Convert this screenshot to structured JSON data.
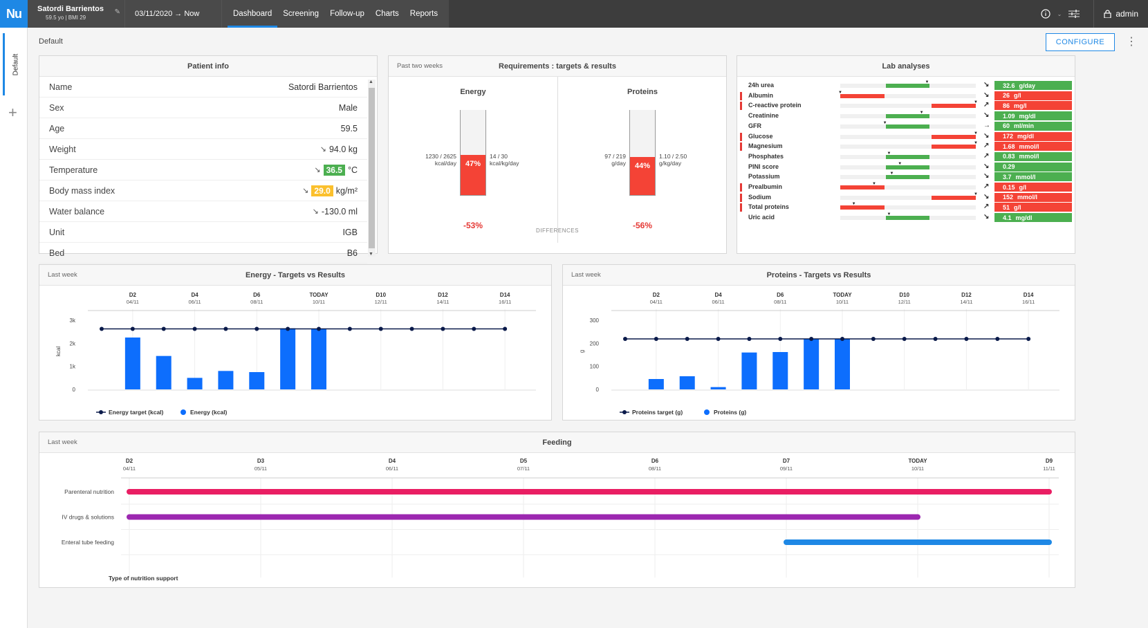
{
  "topbar": {
    "logo": "Nu",
    "patient_name": "Satordi Barrientos",
    "patient_sub": "59.5 yo | BMI 29",
    "date_range": "03/11/2020 → Now",
    "tabs": [
      "Dashboard",
      "Screening",
      "Follow-up",
      "Charts",
      "Reports"
    ],
    "active_tab": "Dashboard",
    "user": "admin"
  },
  "left": {
    "tab_label": "Default",
    "add_label": "+"
  },
  "page": {
    "crumb": "Default",
    "configure_label": "CONFIGURE"
  },
  "patient_info": {
    "title": "Patient info",
    "rows": [
      {
        "label": "Name",
        "value": "Satordi Barrientos"
      },
      {
        "label": "Sex",
        "value": "Male"
      },
      {
        "label": "Age",
        "value": "59.5"
      },
      {
        "label": "Weight",
        "value": "94.0 kg",
        "trend": "↘"
      },
      {
        "label": "Temperature",
        "value": "36.5",
        "unit": "°C",
        "trend": "↘",
        "badge": "green"
      },
      {
        "label": "Body mass index",
        "value": "29.0",
        "unit": "kg/m²",
        "trend": "↘",
        "badge": "yellow"
      },
      {
        "label": "Water balance",
        "value": "-130.0 ml",
        "trend": "↘"
      },
      {
        "label": "Unit",
        "value": "IGB"
      },
      {
        "label": "Bed",
        "value": "B6"
      }
    ]
  },
  "requirements": {
    "sub": "Past two weeks",
    "title": "Requirements : targets & results",
    "differences_label": "DIFFERENCES",
    "energy": {
      "title": "Energy",
      "pct": "47%",
      "pct_value": 47,
      "left_top": "1230 / 2625",
      "left_bot": "kcal/day",
      "right_top": "14 / 30",
      "right_bot": "kcal/kg/day",
      "diff": "-53%"
    },
    "proteins": {
      "title": "Proteins",
      "pct": "44%",
      "pct_value": 44,
      "left_top": "97 / 219",
      "left_bot": "g/day",
      "right_top": "1.10 / 2.50",
      "right_bot": "g/kg/day",
      "diff": "-56%"
    }
  },
  "lab": {
    "title": "Lab analyses",
    "rows": [
      {
        "name": "24h urea",
        "flag": false,
        "trend": "↘",
        "value": "32.6",
        "unit": "g/day",
        "status": "ok",
        "bar": [
          0.33,
          0.66
        ],
        "tick": 0.64
      },
      {
        "name": "Albumin",
        "flag": true,
        "trend": "↘",
        "value": "26",
        "unit": "g/l",
        "status": "bad",
        "bar": [
          0,
          0.33
        ],
        "tick": 0.0
      },
      {
        "name": "C-reactive protein",
        "flag": true,
        "trend": "↗",
        "value": "86",
        "unit": "mg/l",
        "status": "bad",
        "bar": [
          0.67,
          1
        ],
        "tick": 1.0
      },
      {
        "name": "Creatinine",
        "flag": false,
        "trend": "↘",
        "value": "1.09",
        "unit": "mg/dl",
        "status": "ok",
        "bar": [
          0.33,
          0.66
        ],
        "tick": 0.6
      },
      {
        "name": "GFR",
        "flag": false,
        "trend": "→",
        "value": "60",
        "unit": "ml/min",
        "status": "ok",
        "bar": [
          0.33,
          0.66
        ],
        "tick": 0.33
      },
      {
        "name": "Glucose",
        "flag": true,
        "trend": "↘",
        "value": "172",
        "unit": "mg/dl",
        "status": "bad",
        "bar": [
          0.67,
          1
        ],
        "tick": 1.0
      },
      {
        "name": "Magnesium",
        "flag": true,
        "trend": "↗",
        "value": "1.68",
        "unit": "mmol/l",
        "status": "bad",
        "bar": [
          0.67,
          1
        ],
        "tick": 1.0
      },
      {
        "name": "Phosphates",
        "flag": false,
        "trend": "↗",
        "value": "0.83",
        "unit": "mmol/l",
        "status": "ok",
        "bar": [
          0.33,
          0.66
        ],
        "tick": 0.36
      },
      {
        "name": "PINI score",
        "flag": false,
        "trend": "↘",
        "value": "0.29",
        "unit": "",
        "status": "ok",
        "bar": [
          0.33,
          0.66
        ],
        "tick": 0.44
      },
      {
        "name": "Potassium",
        "flag": false,
        "trend": "↘",
        "value": "3.7",
        "unit": "mmol/l",
        "status": "ok",
        "bar": [
          0.33,
          0.66
        ],
        "tick": 0.38
      },
      {
        "name": "Prealbumin",
        "flag": true,
        "trend": "↗",
        "value": "0.15",
        "unit": "g/l",
        "status": "bad",
        "bar": [
          0,
          0.33
        ],
        "tick": 0.25
      },
      {
        "name": "Sodium",
        "flag": true,
        "trend": "↘",
        "value": "152",
        "unit": "mmol/l",
        "status": "bad",
        "bar": [
          0.67,
          1
        ],
        "tick": 1.0
      },
      {
        "name": "Total proteins",
        "flag": true,
        "trend": "↗",
        "value": "51",
        "unit": "g/l",
        "status": "bad",
        "bar": [
          0,
          0.33
        ],
        "tick": 0.1
      },
      {
        "name": "Uric acid",
        "flag": false,
        "trend": "↘",
        "value": "4.1",
        "unit": "mg/dl",
        "status": "ok",
        "bar": [
          0.33,
          0.66
        ],
        "tick": 0.36
      }
    ]
  },
  "energy_chart": {
    "sub": "Last week",
    "title": "Energy - Targets vs Results",
    "ylabel": "kcal",
    "ticks": [
      {
        "d": "D2",
        "x": 1,
        "date": "04/11"
      },
      {
        "d": "D4",
        "x": 3,
        "date": "06/11"
      },
      {
        "d": "D6",
        "x": 5,
        "date": "08/11"
      },
      {
        "d": "TODAY",
        "x": 7,
        "date": "10/11"
      },
      {
        "d": "D10",
        "x": 9,
        "date": "12/11"
      },
      {
        "d": "D12",
        "x": 11,
        "date": "14/11"
      },
      {
        "d": "D14",
        "x": 13,
        "date": "16/11"
      }
    ],
    "yticks": [
      {
        "v": 0,
        "l": "0"
      },
      {
        "v": 1000,
        "l": "1k"
      },
      {
        "v": 2000,
        "l": "2k"
      },
      {
        "v": 3000,
        "l": "3k"
      }
    ],
    "ymax": 3000,
    "target": 2625,
    "target_points": 14,
    "bars": [
      2250,
      1450,
      500,
      800,
      750,
      2650,
      2625
    ],
    "legend_target": "Energy target (kcal)",
    "legend_bar": "Energy (kcal)"
  },
  "protein_chart": {
    "sub": "Last week",
    "title": "Proteins - Targets vs Results",
    "ylabel": "g",
    "ticks": [
      {
        "d": "D2",
        "x": 1,
        "date": "04/11"
      },
      {
        "d": "D4",
        "x": 3,
        "date": "06/11"
      },
      {
        "d": "D6",
        "x": 5,
        "date": "08/11"
      },
      {
        "d": "TODAY",
        "x": 7,
        "date": "10/11"
      },
      {
        "d": "D10",
        "x": 9,
        "date": "12/11"
      },
      {
        "d": "D12",
        "x": 11,
        "date": "14/11"
      },
      {
        "d": "D14",
        "x": 13,
        "date": "16/11"
      }
    ],
    "yticks": [
      {
        "v": 0,
        "l": "0"
      },
      {
        "v": 100,
        "l": "100"
      },
      {
        "v": 200,
        "l": "200"
      },
      {
        "v": 300,
        "l": "300"
      }
    ],
    "ymax": 300,
    "target": 219,
    "target_points": 14,
    "bars": [
      45,
      57,
      10,
      160,
      162,
      220,
      219
    ],
    "legend_target": "Proteins target (g)",
    "legend_bar": "Proteins (g)"
  },
  "feeding": {
    "sub": "Last week",
    "title": "Feeding",
    "axis_title": "Type of nutrition support",
    "ticks": [
      {
        "d": "D2",
        "date": "04/11"
      },
      {
        "d": "D3",
        "date": "05/11"
      },
      {
        "d": "D4",
        "date": "06/11"
      },
      {
        "d": "D5",
        "date": "07/11"
      },
      {
        "d": "D6",
        "date": "08/11"
      },
      {
        "d": "D7",
        "date": "09/11"
      },
      {
        "d": "TODAY",
        "date": "10/11"
      },
      {
        "d": "D9",
        "date": "11/11"
      }
    ],
    "rows": [
      {
        "label": "Parenteral nutrition",
        "start": 0,
        "end": 7,
        "color": "#e91e63"
      },
      {
        "label": "IV drugs & solutions",
        "start": 0,
        "end": 6,
        "color": "#9c27b0"
      },
      {
        "label": "Enteral tube feeding",
        "start": 5,
        "end": 7,
        "color": "#1e88e5"
      }
    ]
  }
}
